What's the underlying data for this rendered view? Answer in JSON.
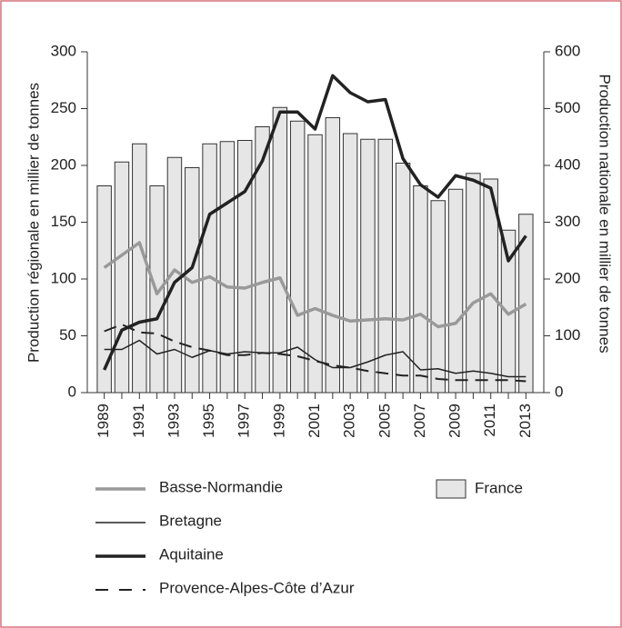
{
  "chart_data": {
    "type": "bar_line",
    "y_label": "Production régionale en millier de tonnes",
    "y2_label": "Production nationale en millier de tonnes",
    "categories": [
      "1989",
      null,
      "1991",
      null,
      "1993",
      null,
      "1995",
      null,
      "1997",
      null,
      "1999",
      null,
      "2001",
      null,
      "2003",
      null,
      "2005",
      null,
      "2007",
      null,
      "2009",
      null,
      "2011",
      null,
      "2013"
    ],
    "series": [
      {
        "name": "France",
        "type": "bar",
        "axis": "y2",
        "color": "#e6e6e6",
        "values": [
          364,
          406,
          438,
          364,
          414,
          396,
          438,
          442,
          444,
          468,
          502,
          478,
          454,
          484,
          456,
          446,
          446,
          404,
          364,
          338,
          358,
          386,
          376,
          286,
          314
        ]
      },
      {
        "name": "Basse-Normandie",
        "type": "line",
        "color": "#999999",
        "width": 3.5,
        "values": [
          110,
          121,
          132,
          87,
          108,
          97,
          102,
          93,
          92,
          97,
          101,
          68,
          74,
          68,
          63,
          64,
          65,
          64,
          69,
          58,
          61,
          79,
          87,
          69,
          78
        ]
      },
      {
        "name": "Bretagne",
        "type": "line",
        "color": "#222222",
        "width": 1.5,
        "values": [
          38,
          38,
          46,
          34,
          38,
          31,
          37,
          34,
          36,
          35,
          35,
          40,
          29,
          22,
          22,
          27,
          33,
          36,
          20,
          21,
          17,
          19,
          17,
          14,
          14
        ]
      },
      {
        "name": "Aquitaine",
        "type": "line",
        "color": "#222222",
        "width": 3.5,
        "values": [
          20,
          55,
          62,
          65,
          97,
          110,
          157,
          167,
          177,
          204,
          247,
          247,
          232,
          279,
          264,
          256,
          258,
          206,
          183,
          172,
          191,
          187,
          180,
          116,
          138
        ]
      },
      {
        "name": "Provence-Alpes-Côte d’Azur",
        "type": "line",
        "color": "#222222",
        "width": 2,
        "dashed": true,
        "values": [
          54,
          60,
          53,
          52,
          45,
          40,
          37,
          33,
          33,
          35,
          34,
          32,
          28,
          24,
          22,
          19,
          17,
          15,
          15,
          12,
          11,
          11,
          11,
          11,
          10
        ]
      }
    ],
    "ylim": [
      0,
      300
    ],
    "yticks": [
      0,
      50,
      100,
      150,
      200,
      250,
      300
    ],
    "y2lim": [
      0,
      600
    ],
    "y2ticks": [
      0,
      100,
      200,
      300,
      400,
      500,
      600
    ]
  }
}
